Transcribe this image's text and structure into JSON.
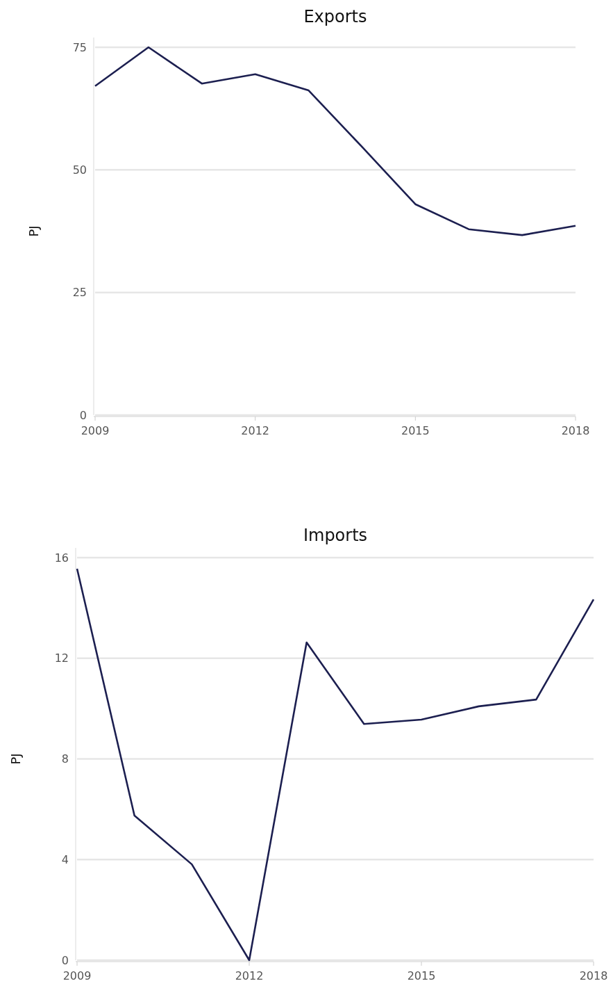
{
  "chart_data": [
    {
      "type": "line",
      "title": "Exports",
      "ylabel": "PJ",
      "x": [
        2009,
        2010,
        2011,
        2012,
        2013,
        2014,
        2015,
        2016,
        2017,
        2018
      ],
      "series": [
        {
          "color": "#1c1f50",
          "values": [
            67.1,
            75.0,
            67.6,
            69.5,
            66.2,
            54.7,
            43.0,
            37.9,
            36.7,
            38.6
          ]
        }
      ],
      "xlim": [
        2009,
        2018
      ],
      "xticks": [
        2009,
        2012,
        2015,
        2018
      ],
      "ylim": [
        0,
        75
      ],
      "yticks": [
        0,
        25,
        50,
        75
      ],
      "grid": "y"
    },
    {
      "type": "line",
      "title": "Imports",
      "ylabel": "PJ",
      "x": [
        2009,
        2010,
        2011,
        2012,
        2013,
        2014,
        2015,
        2016,
        2017,
        2018
      ],
      "series": [
        {
          "color": "#1c1f50",
          "values": [
            15.56,
            5.75,
            3.81,
            0,
            12.63,
            9.39,
            9.56,
            10.09,
            10.36,
            14.34
          ]
        }
      ],
      "xlim": [
        2009,
        2018
      ],
      "xticks": [
        2009,
        2012,
        2015,
        2018
      ],
      "ylim": [
        0,
        16
      ],
      "yticks": [
        0,
        4,
        8,
        12,
        16
      ],
      "grid": "y"
    }
  ]
}
